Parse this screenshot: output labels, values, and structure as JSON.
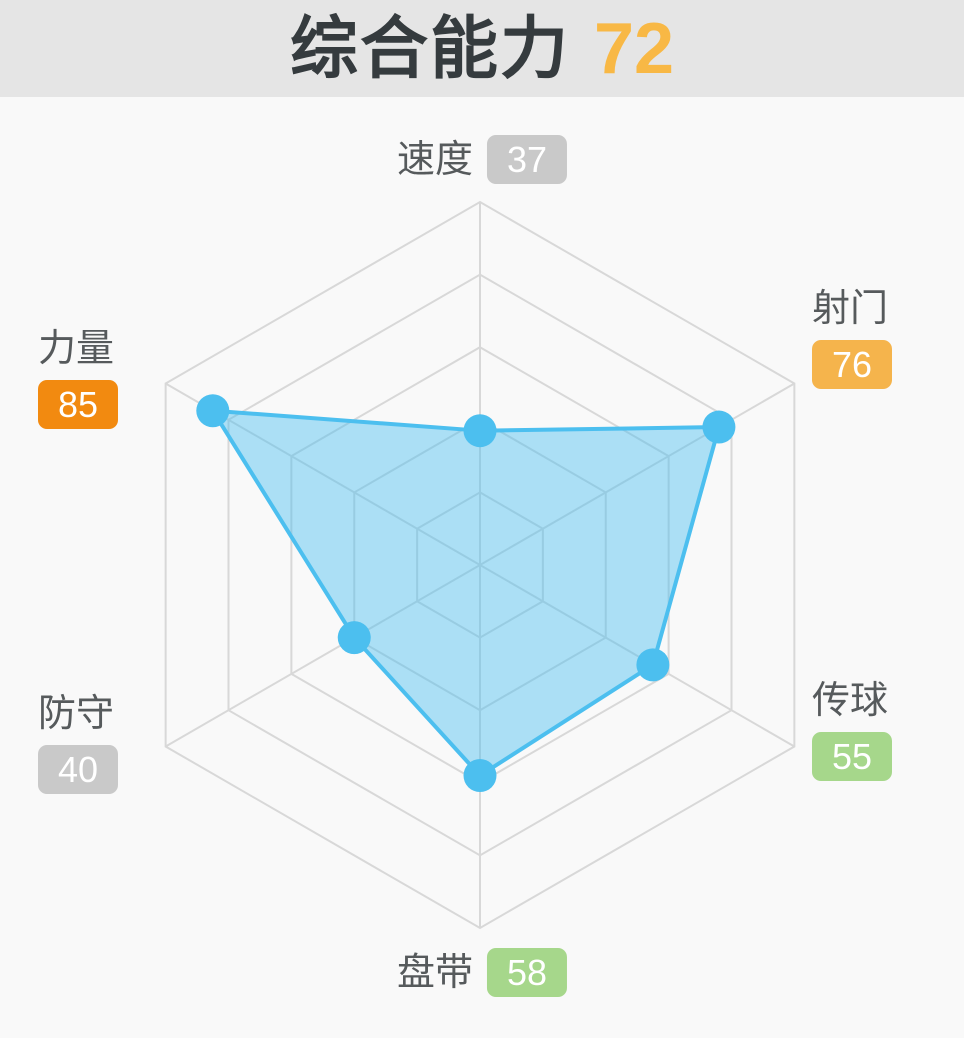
{
  "header": {
    "title": "综合能力",
    "score": "72",
    "score_color": "#f8b845",
    "title_color": "#353b3e",
    "background": "#e5e5e5"
  },
  "chart_data": {
    "type": "radar",
    "title": "综合能力 72",
    "categories": [
      "速度",
      "射门",
      "传球",
      "盘带",
      "防守",
      "力量"
    ],
    "values": [
      37,
      76,
      55,
      58,
      40,
      85
    ],
    "max": 100,
    "rings": 5,
    "angles_clockwise_from_top_deg": [
      0,
      60,
      120,
      180,
      240,
      300
    ],
    "label_positions": [
      "top",
      "right-upper",
      "right-lower",
      "bottom",
      "left-upper",
      "left-lower"
    ],
    "value_colors": [
      "#c9c9c9",
      "#f5b44c",
      "#a6d78b",
      "#a6d78b",
      "#c9c9c9",
      "#f28a10"
    ],
    "series_color": "#4cbfef",
    "fill_opacity": 0.45,
    "grid_color": "#d8d8d8",
    "background": "#f9f9f9"
  }
}
